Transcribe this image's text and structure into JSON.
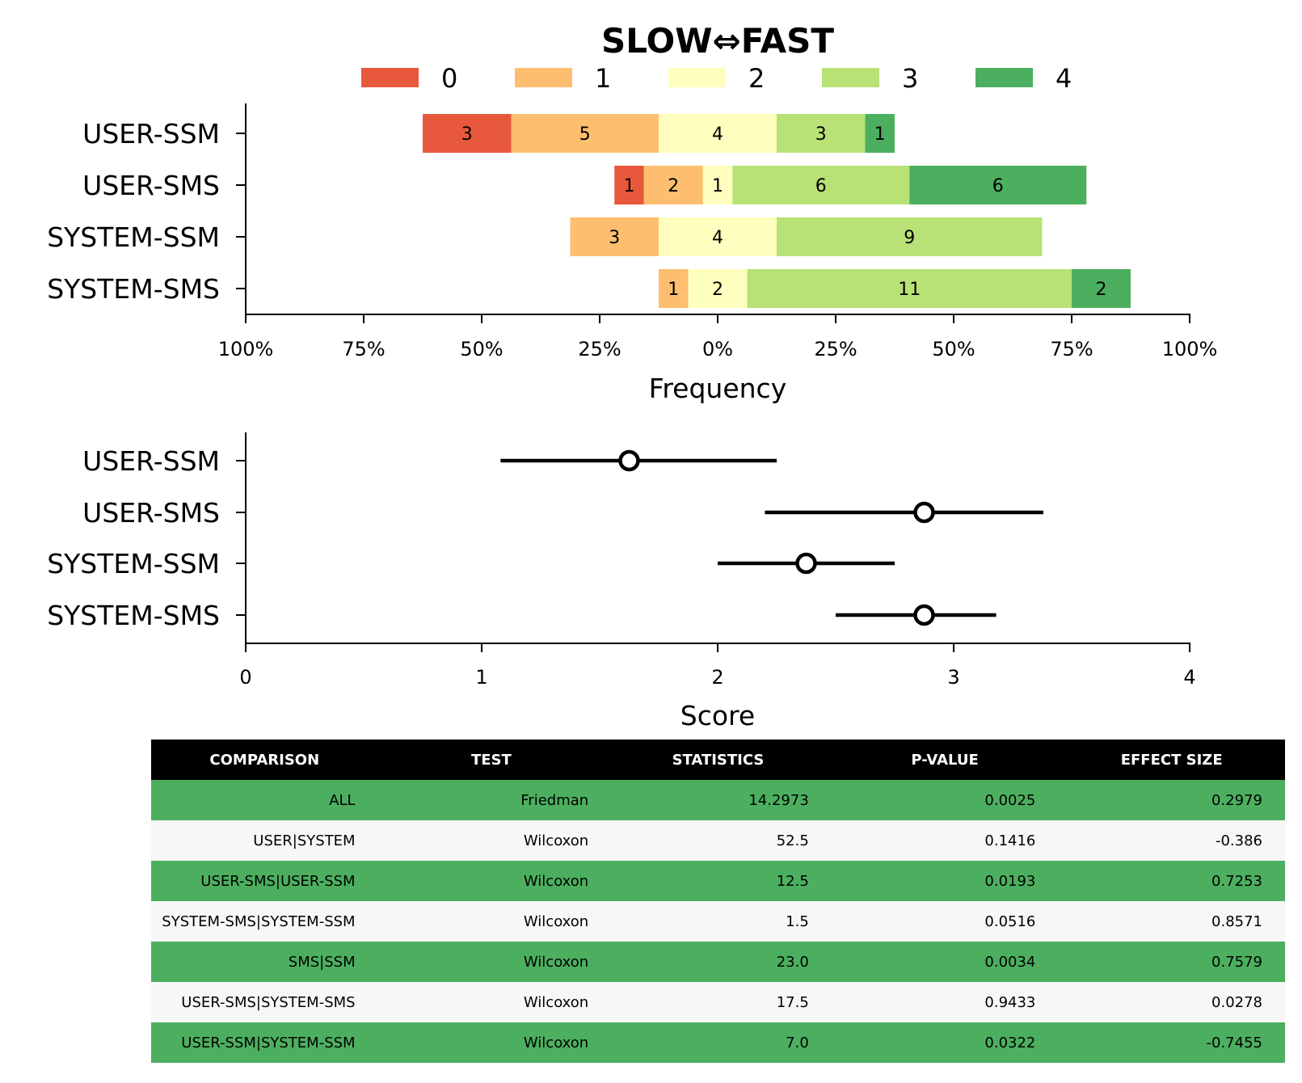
{
  "chart_data": [
    {
      "type": "bar",
      "subtype": "diverging-stacked-horizontal",
      "title": "SLOW⇔FAST",
      "xlabel": "Frequency",
      "ylabel": "",
      "categories": [
        "USER-SSM",
        "USER-SMS",
        "SYSTEM-SSM",
        "SYSTEM-SMS"
      ],
      "series": [
        {
          "name": "0",
          "color": "#e8583c",
          "values": [
            3,
            1,
            0,
            0
          ]
        },
        {
          "name": "1",
          "color": "#fdbe70",
          "values": [
            5,
            2,
            3,
            1
          ]
        },
        {
          "name": "2",
          "color": "#feffbe",
          "values": [
            4,
            1,
            4,
            2
          ]
        },
        {
          "name": "3",
          "color": "#b8e176",
          "values": [
            3,
            6,
            9,
            11
          ]
        },
        {
          "name": "4",
          "color": "#4caf5f",
          "values": [
            1,
            6,
            0,
            2
          ]
        }
      ],
      "xtick_labels": [
        "100%",
        "75%",
        "50%",
        "25%",
        "0%",
        "25%",
        "50%",
        "75%",
        "100%"
      ],
      "xlim": [
        -100,
        100
      ],
      "legend_position": "top-center",
      "grid": false
    },
    {
      "type": "scatter",
      "subtype": "point-with-error-bars",
      "xlabel": "Score",
      "ylabel": "",
      "categories": [
        "USER-SSM",
        "USER-SMS",
        "SYSTEM-SSM",
        "SYSTEM-SMS"
      ],
      "points": [
        {
          "category": "USER-SSM",
          "mean": 1.625,
          "low": 1.08,
          "high": 2.25
        },
        {
          "category": "USER-SMS",
          "mean": 2.875,
          "low": 2.2,
          "high": 3.38
        },
        {
          "category": "SYSTEM-SSM",
          "mean": 2.375,
          "low": 2.0,
          "high": 2.75
        },
        {
          "category": "SYSTEM-SMS",
          "mean": 2.875,
          "low": 2.5,
          "high": 3.18
        }
      ],
      "xticks": [
        0,
        1,
        2,
        3,
        4
      ],
      "xlim": [
        0,
        4
      ],
      "grid": false
    },
    {
      "type": "table",
      "columns": [
        "COMPARISON",
        "TEST",
        "STATISTICS",
        "P-VALUE",
        "EFFECT SIZE"
      ],
      "rows": [
        [
          "ALL",
          "Friedman",
          "14.2973",
          "0.0025",
          "0.2979"
        ],
        [
          "USER|SYSTEM",
          "Wilcoxon",
          "52.5",
          "0.1416",
          "-0.386"
        ],
        [
          "USER-SMS|USER-SSM",
          "Wilcoxon",
          "12.5",
          "0.0193",
          "0.7253"
        ],
        [
          "SYSTEM-SMS|SYSTEM-SSM",
          "Wilcoxon",
          "1.5",
          "0.0516",
          "0.8571"
        ],
        [
          "SMS|SSM",
          "Wilcoxon",
          "23.0",
          "0.0034",
          "0.7579"
        ],
        [
          "USER-SMS|SYSTEM-SMS",
          "Wilcoxon",
          "17.5",
          "0.9433",
          "0.0278"
        ],
        [
          "USER-SSM|SYSTEM-SSM",
          "Wilcoxon",
          "7.0",
          "0.0322",
          "-0.7455"
        ]
      ],
      "row_colors": [
        "#4caf5f",
        "#f7f7f7"
      ],
      "header_color": "#000000"
    }
  ]
}
